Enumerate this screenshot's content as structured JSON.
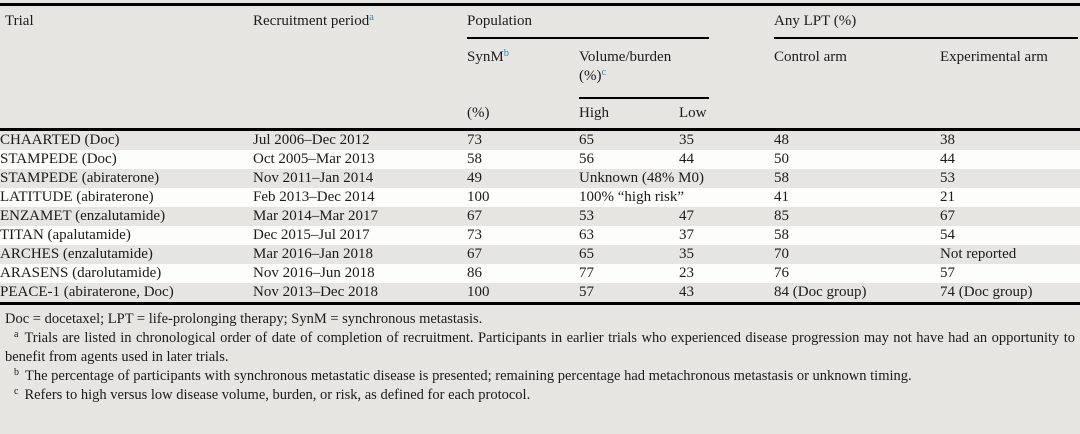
{
  "table": {
    "header": {
      "trial": "Trial",
      "recruitment": "Recruitment period",
      "recruitment_sup": "a",
      "population": "Population",
      "synm": "SynM",
      "synm_sup": "b",
      "synm_unit": "(%)",
      "volume_line1": "Volume/burden",
      "volume_line2": "(%)",
      "volume_sup": "c",
      "high": "High",
      "low": "Low",
      "any_lpt": "Any LPT (%)",
      "control_arm": "Control arm",
      "experimental_arm": "Experimental arm"
    },
    "rows": [
      {
        "trial": "CHAARTED (Doc)",
        "recruitment": "Jul 2006–Dec 2012",
        "synm": "73",
        "high": "65",
        "low": "35",
        "control": "48",
        "experimental": "38"
      },
      {
        "trial": "STAMPEDE (Doc)",
        "recruitment": "Oct 2005–Mar 2013",
        "synm": "58",
        "high": "56",
        "low": "44",
        "control": "50",
        "experimental": "44"
      },
      {
        "trial": "STAMPEDE (abiraterone)",
        "recruitment": "Nov 2011–Jan 2014",
        "synm": "49",
        "volume_span": "Unknown (48%\nM0)",
        "control": "58",
        "experimental": "53"
      },
      {
        "trial": "LATITUDE (abiraterone)",
        "recruitment": "Feb 2013–Dec 2014",
        "synm": "100",
        "volume_span": "100% “high risk”",
        "control": "41",
        "experimental": "21"
      },
      {
        "trial": "ENZAMET (enzalutamide)",
        "recruitment": "Mar 2014–Mar 2017",
        "synm": "67",
        "high": "53",
        "low": "47",
        "control": "85",
        "experimental": "67"
      },
      {
        "trial": "TITAN (apalutamide)",
        "recruitment": "Dec 2015–Jul 2017",
        "synm": "73",
        "high": "63",
        "low": "37",
        "control": "58",
        "experimental": "54"
      },
      {
        "trial": "ARCHES (enzalutamide)",
        "recruitment": "Mar 2016–Jan 2018",
        "synm": "67",
        "high": "65",
        "low": "35",
        "control": "70",
        "experimental": "Not reported"
      },
      {
        "trial": "ARASENS (darolutamide)",
        "recruitment": "Nov 2016–Jun 2018",
        "synm": "86",
        "high": "77",
        "low": "23",
        "control": "76",
        "experimental": "57"
      },
      {
        "trial": "PEACE-1 (abiraterone, Doc)",
        "recruitment": "Nov 2013–Dec 2018",
        "synm": "100",
        "high": "57",
        "low": "43",
        "control": "84 (Doc group)",
        "experimental": "74 (Doc group)"
      }
    ]
  },
  "footnotes": {
    "abbreviations": "Doc = docetaxel; LPT = life-prolonging therapy; SynM = synchronous metastasis.",
    "items": [
      {
        "marker": "a",
        "text": "Trials are listed in chronological order of date of completion of recruitment. Participants in earlier trials who experienced disease progression may not have had an opportunity to benefit from agents used in later trials."
      },
      {
        "marker": "b",
        "text": "The percentage of participants with synchronous metastatic disease is presented; remaining percentage had metachronous metastasis or unknown timing."
      },
      {
        "marker": "c",
        "text": "Refers to high versus low disease volume, burden, or risk, as defined for each protocol."
      }
    ]
  },
  "colors": {
    "background": "#e6e5e2",
    "row_stripe": "#fdfdfc",
    "superscript_blue": "#2d8ac3",
    "rule_black": "#000000"
  }
}
